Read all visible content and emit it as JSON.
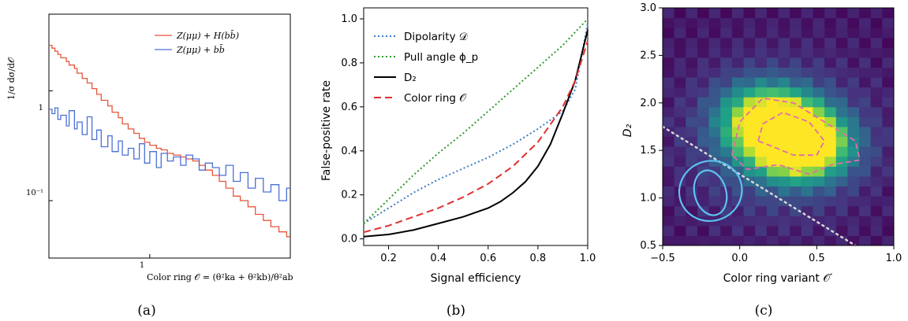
{
  "chart_data": [
    {
      "type": "line",
      "caption": "(a)",
      "xlabel": "Color ring 𝒪 = (θ²ka + θ²kb)/θ²ab",
      "ylabel": "1/σ dσ/d𝒪",
      "xscale": "log",
      "yscale": "log",
      "xlim": [
        0.55,
        2.3
      ],
      "ylim": [
        0.03,
        5
      ],
      "xticks": [
        "1"
      ],
      "yticks": [
        "1",
        "10⁻¹"
      ],
      "legend_position": "top-right",
      "series": [
        {
          "name": "Z(μμ) + H(bb̄)",
          "color": "#e8553a",
          "x": [
            0.55,
            0.56,
            0.57,
            0.58,
            0.59,
            0.61,
            0.62,
            0.64,
            0.65,
            0.67,
            0.69,
            0.71,
            0.73,
            0.75,
            0.78,
            0.8,
            0.83,
            0.85,
            0.88,
            0.91,
            0.94,
            0.97,
            1.0,
            1.04,
            1.07,
            1.11,
            1.15,
            1.2,
            1.24,
            1.29,
            1.34,
            1.39,
            1.45,
            1.51,
            1.57,
            1.64,
            1.71,
            1.79,
            1.87,
            1.96,
            2.05,
            2.15,
            2.25
          ],
          "y": [
            2.6,
            2.45,
            2.3,
            2.15,
            2.0,
            1.85,
            1.72,
            1.6,
            1.45,
            1.3,
            1.18,
            1.05,
            0.93,
            0.82,
            0.73,
            0.64,
            0.57,
            0.5,
            0.45,
            0.41,
            0.37,
            0.34,
            0.32,
            0.3,
            0.29,
            0.27,
            0.26,
            0.25,
            0.24,
            0.23,
            0.21,
            0.19,
            0.17,
            0.15,
            0.13,
            0.11,
            0.1,
            0.088,
            0.075,
            0.066,
            0.058,
            0.052,
            0.047
          ]
        },
        {
          "name": "Z(μμ) + bb̄",
          "color": "#4a6fd8",
          "x": [
            0.55,
            0.56,
            0.57,
            0.58,
            0.59,
            0.61,
            0.62,
            0.64,
            0.65,
            0.67,
            0.69,
            0.71,
            0.73,
            0.75,
            0.78,
            0.8,
            0.83,
            0.85,
            0.88,
            0.91,
            0.94,
            0.97,
            1.0,
            1.04,
            1.07,
            1.11,
            1.15,
            1.2,
            1.24,
            1.29,
            1.34,
            1.39,
            1.45,
            1.51,
            1.57,
            1.64,
            1.71,
            1.79,
            1.87,
            1.96,
            2.05,
            2.15,
            2.25
          ],
          "y": [
            0.68,
            0.62,
            0.7,
            0.55,
            0.6,
            0.48,
            0.66,
            0.45,
            0.52,
            0.4,
            0.58,
            0.36,
            0.44,
            0.31,
            0.39,
            0.28,
            0.35,
            0.26,
            0.3,
            0.24,
            0.33,
            0.22,
            0.28,
            0.2,
            0.27,
            0.23,
            0.25,
            0.21,
            0.26,
            0.24,
            0.19,
            0.22,
            0.2,
            0.17,
            0.21,
            0.15,
            0.18,
            0.13,
            0.16,
            0.12,
            0.14,
            0.1,
            0.13
          ]
        }
      ]
    },
    {
      "type": "line",
      "caption": "(b)",
      "xlabel": "Signal efficiency",
      "ylabel": "False-positive rate",
      "xlim": [
        0.1,
        1.0
      ],
      "ylim": [
        -0.03,
        1.05
      ],
      "xticks": [
        "0.2",
        "0.4",
        "0.6",
        "0.8",
        "1.0"
      ],
      "yticks": [
        "0.0",
        "0.2",
        "0.4",
        "0.6",
        "0.8",
        "1.0"
      ],
      "legend_position": "top-left",
      "series": [
        {
          "name": "Dipolarity 𝒟",
          "color": "#3b7dbf",
          "style": "dotted",
          "x": [
            0.1,
            0.2,
            0.3,
            0.4,
            0.5,
            0.6,
            0.7,
            0.8,
            0.9,
            0.95,
            1.0
          ],
          "y": [
            0.07,
            0.14,
            0.21,
            0.27,
            0.32,
            0.37,
            0.43,
            0.5,
            0.58,
            0.68,
            0.98
          ]
        },
        {
          "name": "Pull angle ϕ_p",
          "color": "#2e9a2e",
          "style": "dotted",
          "x": [
            0.1,
            0.2,
            0.3,
            0.4,
            0.5,
            0.6,
            0.7,
            0.8,
            0.9,
            1.0
          ],
          "y": [
            0.07,
            0.18,
            0.29,
            0.39,
            0.48,
            0.58,
            0.68,
            0.78,
            0.88,
            1.0
          ]
        },
        {
          "name": "D₂",
          "color": "#000000",
          "style": "solid",
          "x": [
            0.1,
            0.2,
            0.3,
            0.4,
            0.5,
            0.6,
            0.65,
            0.7,
            0.75,
            0.8,
            0.85,
            0.9,
            0.95,
            1.0
          ],
          "y": [
            0.01,
            0.02,
            0.04,
            0.07,
            0.1,
            0.14,
            0.17,
            0.21,
            0.26,
            0.33,
            0.43,
            0.57,
            0.72,
            0.95
          ]
        },
        {
          "name": "Color ring 𝒪",
          "color": "#e03030",
          "style": "dashed",
          "x": [
            0.1,
            0.2,
            0.3,
            0.4,
            0.5,
            0.6,
            0.7,
            0.8,
            0.85,
            0.9,
            0.95,
            1.0
          ],
          "y": [
            0.03,
            0.06,
            0.1,
            0.14,
            0.19,
            0.25,
            0.33,
            0.44,
            0.52,
            0.6,
            0.72,
            0.9
          ]
        }
      ]
    },
    {
      "type": "heatmap",
      "caption": "(c)",
      "xlabel": "Color ring variant 𝒪′",
      "ylabel": "D₂",
      "xlim": [
        -0.5,
        1.0
      ],
      "ylim": [
        0.5,
        3.0
      ],
      "xticks": [
        "−0.5",
        "0.0",
        "0.5",
        "1.0"
      ],
      "yticks": [
        "0.5",
        "1.0",
        "1.5",
        "2.0",
        "2.5",
        "3.0"
      ],
      "colormap": "viridis",
      "bins": {
        "nx": 20,
        "ny": 24
      },
      "peaks": [
        {
          "x": 0.42,
          "y": 1.55,
          "weight": 1.0
        },
        {
          "x": 0.25,
          "y": 1.7,
          "weight": 0.85
        },
        {
          "x": 0.15,
          "y": 1.9,
          "weight": 0.45
        }
      ],
      "contours_signal": {
        "color": "#e46bab",
        "style": "dashed",
        "levels": [
          "outer",
          "inner"
        ]
      },
      "contours_background": {
        "color": "#5cc3f0",
        "style": "solid",
        "center": [
          -0.2,
          1.05
        ],
        "levels": [
          "outer",
          "inner"
        ]
      },
      "cut_line": {
        "color": "#d8d8d8",
        "style": "dotted",
        "from": [
          -0.5,
          1.75
        ],
        "to": [
          0.75,
          0.5
        ]
      }
    }
  ]
}
